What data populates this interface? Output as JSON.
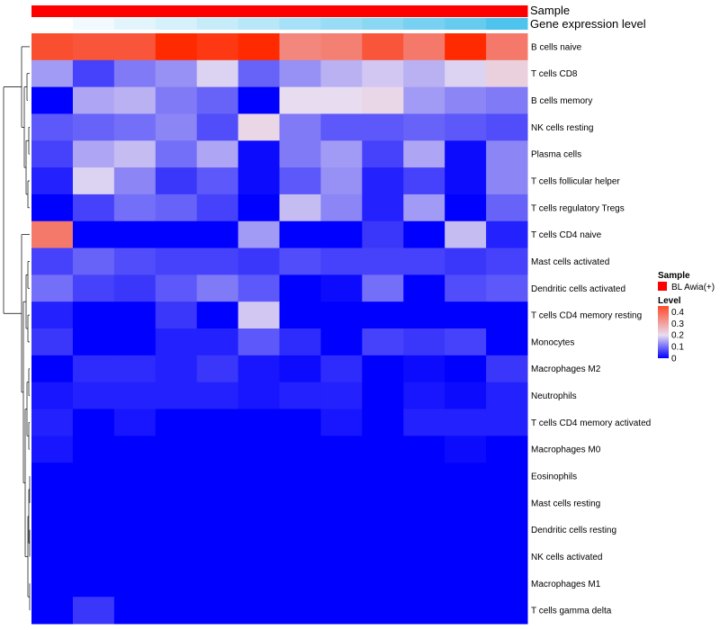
{
  "chart_data": {
    "type": "heatmap",
    "title": "",
    "annotation_labels": [
      "Sample",
      "Gene expression level"
    ],
    "rows": [
      "B cells naive",
      "T cells CD8",
      "B cells memory",
      "NK cells resting",
      "Plasma cells",
      "T cells follicular helper",
      "T cells regulatory  Tregs",
      "T cells CD4 naive",
      "Mast cells activated",
      "Dendritic cells activated",
      "T cells CD4 memory resting",
      "Monocytes",
      "Macrophages M2",
      "Neutrophils",
      "T cells CD4 memory activated",
      "Macrophages M0",
      "Eosinophils",
      "Mast cells resting",
      "Dendritic cells resting",
      "NK cells activated",
      "Macrophages M1",
      "T cells gamma delta"
    ],
    "n_columns": 12,
    "values": [
      [
        0.4,
        0.39,
        0.39,
        0.45,
        0.43,
        0.45,
        0.32,
        0.33,
        0.39,
        0.34,
        0.45,
        0.34
      ],
      [
        0.14,
        0.06,
        0.11,
        0.13,
        0.19,
        0.09,
        0.13,
        0.16,
        0.18,
        0.16,
        0.19,
        0.22
      ],
      [
        0.0,
        0.15,
        0.16,
        0.11,
        0.09,
        0.0,
        0.2,
        0.2,
        0.21,
        0.14,
        0.12,
        0.11
      ],
      [
        0.08,
        0.09,
        0.1,
        0.12,
        0.07,
        0.21,
        0.11,
        0.08,
        0.08,
        0.09,
        0.08,
        0.07
      ],
      [
        0.06,
        0.15,
        0.17,
        0.1,
        0.15,
        0.01,
        0.11,
        0.14,
        0.06,
        0.15,
        0.01,
        0.12
      ],
      [
        0.03,
        0.19,
        0.12,
        0.05,
        0.08,
        0.01,
        0.08,
        0.13,
        0.03,
        0.06,
        0.01,
        0.12
      ],
      [
        0.0,
        0.06,
        0.1,
        0.09,
        0.06,
        0.0,
        0.17,
        0.12,
        0.03,
        0.14,
        0.0,
        0.09
      ],
      [
        0.34,
        0.0,
        0.0,
        0.0,
        0.0,
        0.14,
        0.0,
        0.0,
        0.05,
        0.0,
        0.17,
        0.03
      ],
      [
        0.06,
        0.09,
        0.07,
        0.06,
        0.06,
        0.05,
        0.07,
        0.06,
        0.06,
        0.06,
        0.05,
        0.06
      ],
      [
        0.1,
        0.06,
        0.05,
        0.08,
        0.11,
        0.08,
        0.0,
        0.01,
        0.1,
        0.0,
        0.07,
        0.08
      ],
      [
        0.03,
        0.0,
        0.0,
        0.05,
        0.0,
        0.18,
        0.0,
        0.0,
        0.0,
        0.0,
        0.0,
        0.0
      ],
      [
        0.05,
        0.0,
        0.0,
        0.03,
        0.03,
        0.08,
        0.04,
        0.0,
        0.06,
        0.05,
        0.06,
        0.0
      ],
      [
        0.0,
        0.04,
        0.04,
        0.03,
        0.05,
        0.02,
        0.01,
        0.04,
        0.0,
        0.01,
        0.0,
        0.05
      ],
      [
        0.02,
        0.03,
        0.03,
        0.03,
        0.03,
        0.02,
        0.03,
        0.03,
        0.0,
        0.02,
        0.01,
        0.03
      ],
      [
        0.03,
        0.0,
        0.02,
        0.0,
        0.0,
        0.0,
        0.0,
        0.02,
        0.0,
        0.03,
        0.03,
        0.03
      ],
      [
        0.02,
        0.0,
        0.0,
        0.0,
        0.0,
        0.0,
        0.0,
        0.0,
        0.0,
        0.0,
        0.01,
        0.0
      ],
      [
        0.0,
        0.0,
        0.0,
        0.0,
        0.0,
        0.0,
        0.0,
        0.0,
        0.0,
        0.0,
        0.0,
        0.0
      ],
      [
        0.0,
        0.0,
        0.0,
        0.0,
        0.0,
        0.0,
        0.0,
        0.0,
        0.0,
        0.0,
        0.0,
        0.0
      ],
      [
        0.0,
        0.0,
        0.0,
        0.0,
        0.0,
        0.0,
        0.0,
        0.0,
        0.0,
        0.0,
        0.0,
        0.0
      ],
      [
        0.0,
        0.0,
        0.0,
        0.0,
        0.0,
        0.0,
        0.0,
        0.0,
        0.0,
        0.0,
        0.0,
        0.0
      ],
      [
        0.0,
        0.0,
        0.0,
        0.0,
        0.0,
        0.0,
        0.0,
        0.0,
        0.0,
        0.0,
        0.0,
        0.0
      ],
      [
        0.0,
        0.05,
        0.0,
        0.0,
        0.0,
        0.0,
        0.0,
        0.0,
        0.0,
        0.0,
        0.0,
        0.0
      ]
    ],
    "sample_annotation": [
      "BL Awia(+)",
      "BL Awia(+)",
      "BL Awia(+)",
      "BL Awia(+)",
      "BL Awia(+)",
      "BL Awia(+)",
      "BL Awia(+)",
      "BL Awia(+)",
      "BL Awia(+)",
      "BL Awia(+)",
      "BL Awia(+)",
      "BL Awia(+)"
    ],
    "gene_expression_level": [
      0.0,
      0.08,
      0.16,
      0.24,
      0.32,
      0.4,
      0.5,
      0.58,
      0.66,
      0.76,
      0.86,
      1.0
    ],
    "legend": {
      "sample_title": "Sample",
      "sample_entries": [
        {
          "label": "BL Awia(+)",
          "color": "#ff0000"
        }
      ],
      "level_title": "Level",
      "level_ticks": [
        "0.4",
        "0.3",
        "0.2",
        "0.1",
        "0"
      ],
      "level_range": [
        0,
        0.45
      ]
    },
    "colorscale": {
      "low": "#0000ff",
      "mid": "#e8ddf0",
      "high": "#ff2a00",
      "mid_value": 0.2
    },
    "gene_expression_colors": {
      "low": "#ffffff",
      "high": "#4ec3ee"
    }
  }
}
